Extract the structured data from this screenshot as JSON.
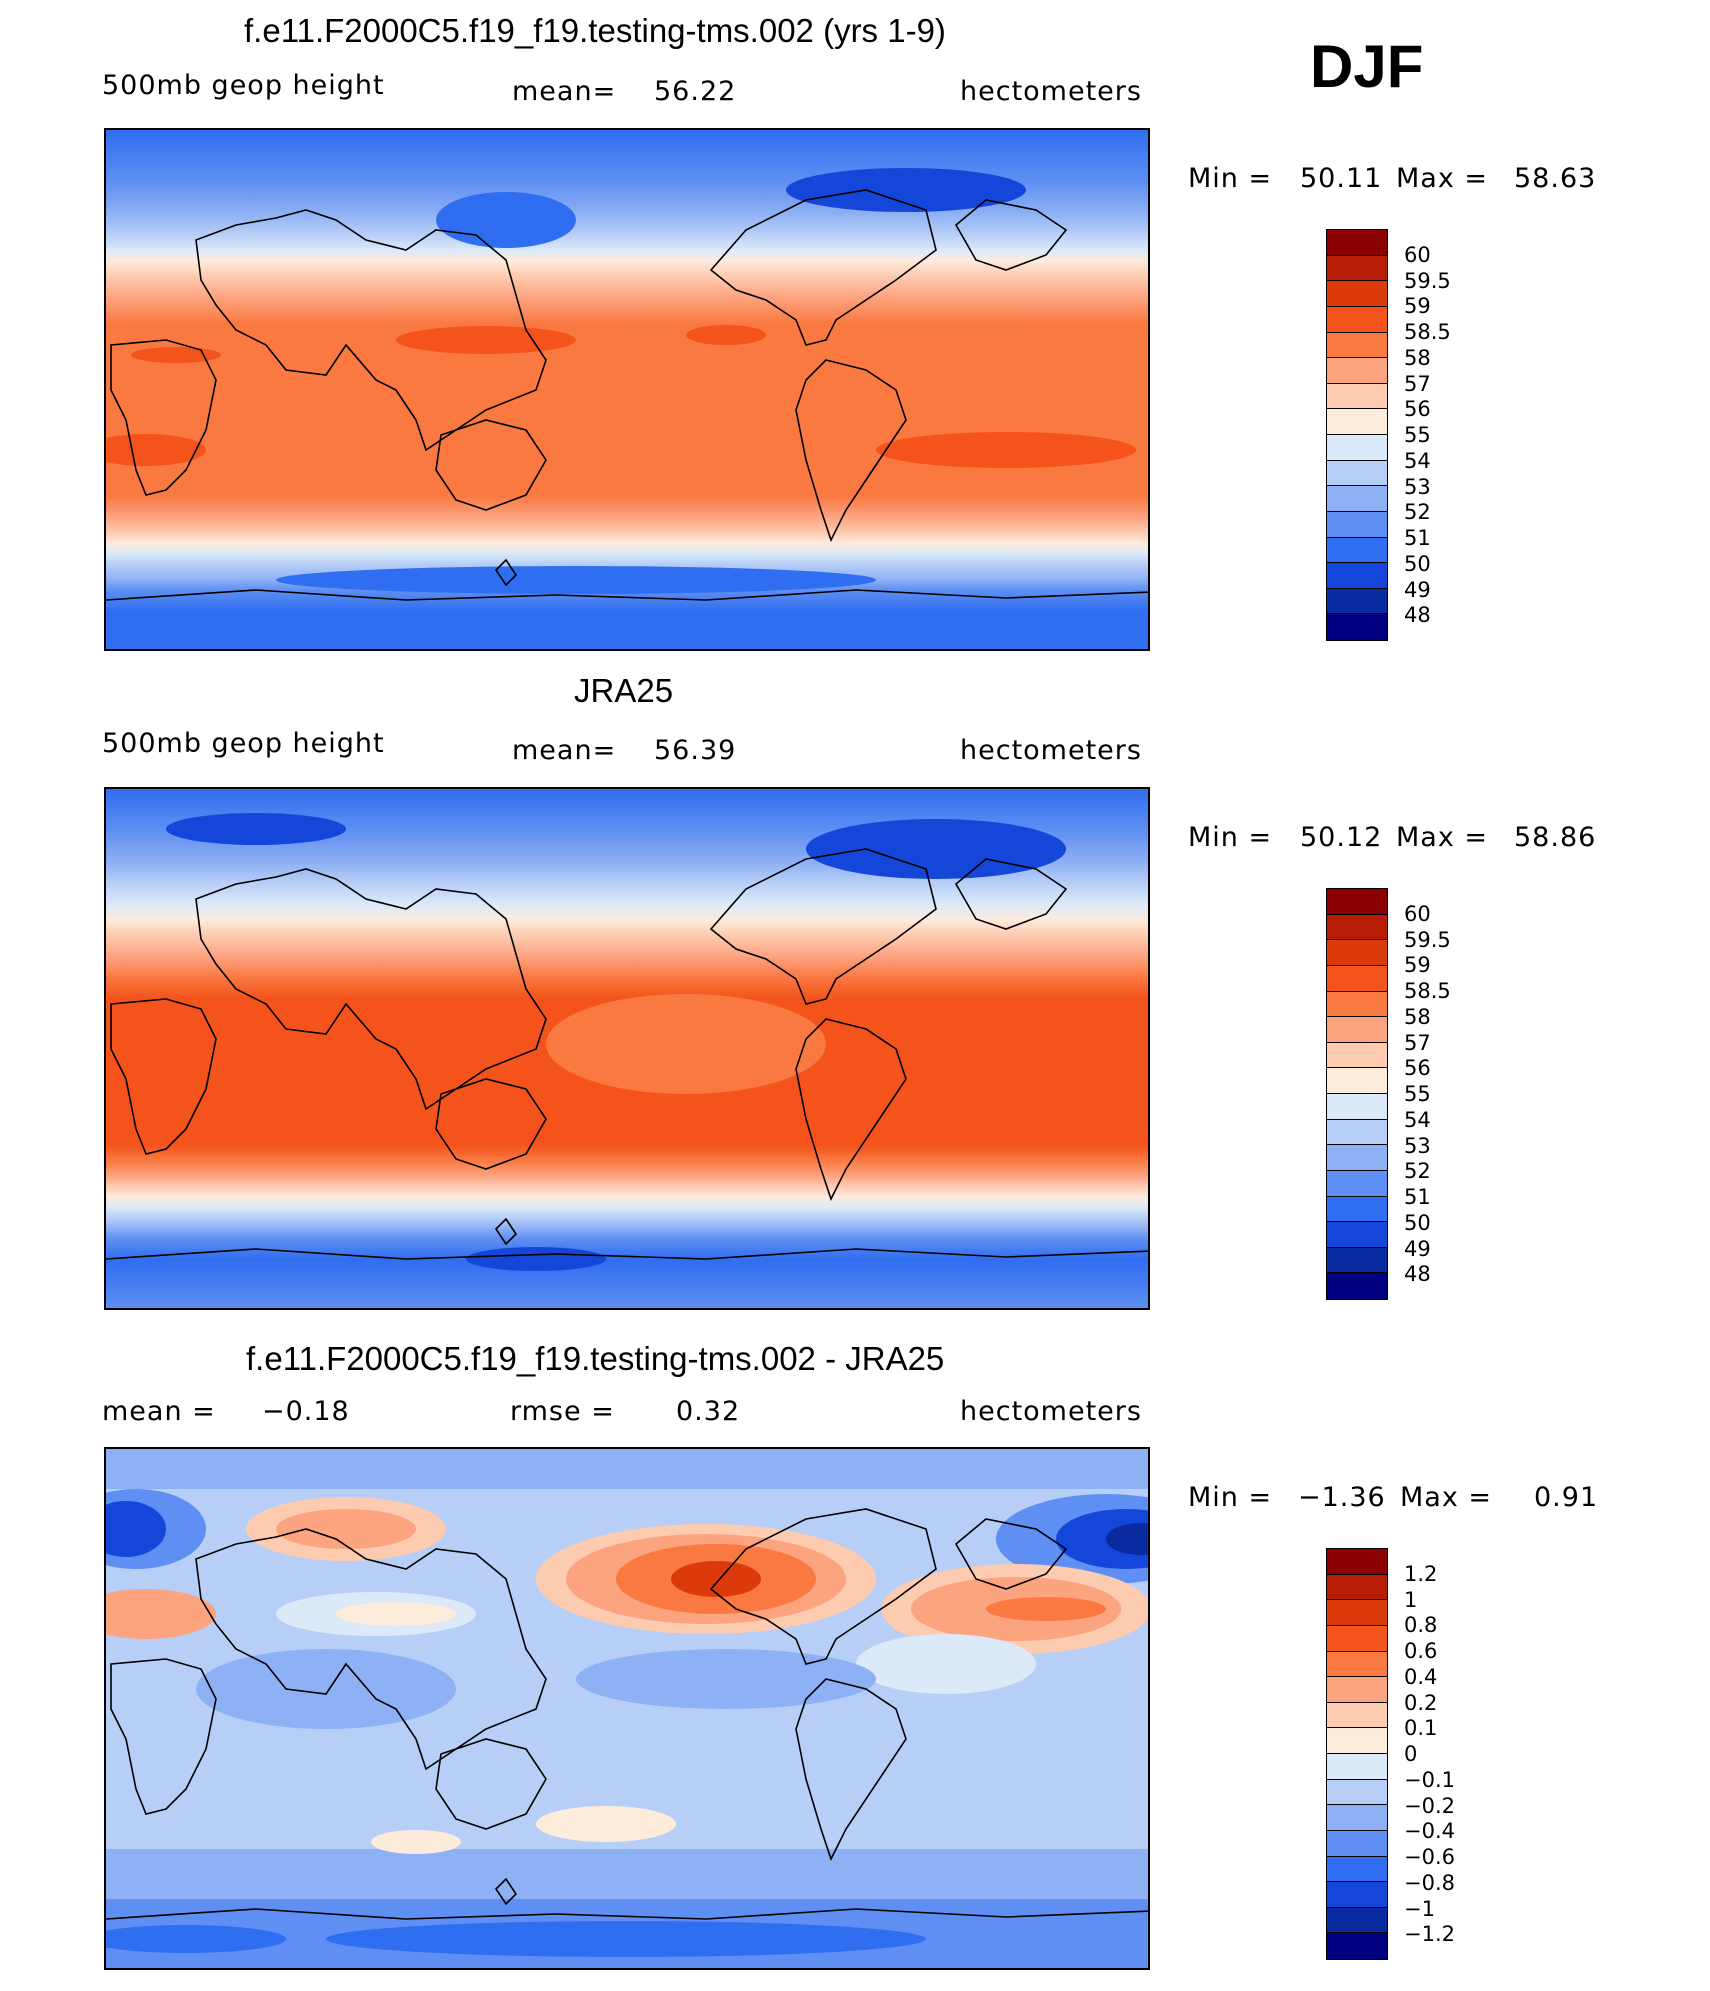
{
  "season": "DJF",
  "panels": [
    {
      "id": "model",
      "title": "f.e11.F2000C5.f19_f19.testing-tms.002 (yrs 1-9)",
      "left_label": "500mb geop height",
      "stat_label": "mean=",
      "stat_value": "56.22",
      "units": "hectometers",
      "min_label": "Min =",
      "min_value": "50.11",
      "max_label": "Max =",
      "max_value": "58.63",
      "legend_levels": [
        "60",
        "59.5",
        "59",
        "58.5",
        "58",
        "57",
        "56",
        "55",
        "54",
        "53",
        "52",
        "51",
        "50",
        "49",
        "48"
      ],
      "legend_colors": [
        "#8b0000",
        "#b71c05",
        "#dd3a0c",
        "#f4531c",
        "#f97941",
        "#fca380",
        "#fdcbb0",
        "#fdebdc",
        "#dbe9f9",
        "#b7cef6",
        "#8eb0f4",
        "#5f8ff2",
        "#2f6ef0",
        "#1447d9",
        "#0a2aa0",
        "#000080"
      ]
    },
    {
      "id": "obs",
      "title": "JRA25",
      "left_label": "500mb geop height",
      "stat_label": "mean=",
      "stat_value": "56.39",
      "units": "hectometers",
      "min_label": "Min =",
      "min_value": "50.12",
      "max_label": "Max =",
      "max_value": "58.86",
      "legend_levels": [
        "60",
        "59.5",
        "59",
        "58.5",
        "58",
        "57",
        "56",
        "55",
        "54",
        "53",
        "52",
        "51",
        "50",
        "49",
        "48"
      ],
      "legend_colors": [
        "#8b0000",
        "#b71c05",
        "#dd3a0c",
        "#f4531c",
        "#f97941",
        "#fca380",
        "#fdcbb0",
        "#fdebdc",
        "#dbe9f9",
        "#b7cef6",
        "#8eb0f4",
        "#5f8ff2",
        "#2f6ef0",
        "#1447d9",
        "#0a2aa0",
        "#000080"
      ]
    },
    {
      "id": "diff",
      "title": "f.e11.F2000C5.f19_f19.testing-tms.002 - JRA25",
      "left_label": "mean =",
      "left_value": "−0.18",
      "stat_label": "rmse =",
      "stat_value": "0.32",
      "units": "hectometers",
      "min_label": "Min =",
      "min_value": "−1.36",
      "max_label": "Max =",
      "max_value": "0.91",
      "legend_levels": [
        "1.2",
        "1",
        "0.8",
        "0.6",
        "0.4",
        "0.2",
        "0.1",
        "0",
        "−0.1",
        "−0.2",
        "−0.4",
        "−0.6",
        "−0.8",
        "−1",
        "−1.2"
      ],
      "legend_colors": [
        "#8b0000",
        "#b71c05",
        "#dd3a0c",
        "#f4531c",
        "#f97941",
        "#fca380",
        "#fdcbb0",
        "#fdebdc",
        "#dbe9f9",
        "#b7cef6",
        "#8eb0f4",
        "#5f8ff2",
        "#2f6ef0",
        "#1447d9",
        "#0a2aa0",
        "#000080"
      ]
    }
  ]
}
